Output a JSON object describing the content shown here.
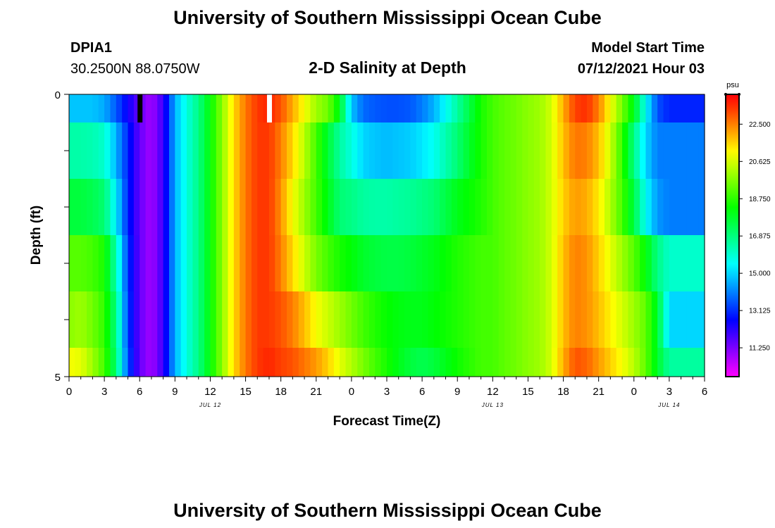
{
  "header": {
    "title": "University of Southern Mississippi Ocean Cube",
    "station_id": "DPIA1",
    "station_coords": "30.2500N  88.0750W",
    "subtitle": "2-D Salinity at Depth",
    "model_label": "Model Start Time",
    "model_time": "07/12/2021 Hour 03"
  },
  "footer": {
    "title": "University of Southern Mississippi Ocean Cube"
  },
  "chart_data": {
    "type": "heatmap",
    "title": "2-D Salinity at Depth",
    "xlabel": "Forecast Time(Z)",
    "ylabel": "Depth (ft)",
    "x_ticks": [
      "0",
      "3",
      "6",
      "9",
      "12",
      "15",
      "18",
      "21",
      "0",
      "3",
      "6",
      "9",
      "12",
      "15",
      "18",
      "21",
      "0",
      "3",
      "6"
    ],
    "date_labels": [
      {
        "text": "JUL 12",
        "at_hour": 12
      },
      {
        "text": "JUL 13",
        "at_hour": 36
      },
      {
        "text": "JUL 14",
        "at_hour": 51
      }
    ],
    "y_range": [
      0,
      5
    ],
    "y_tick_labels": [
      "0",
      "5"
    ],
    "colorbar": {
      "unit": "psu",
      "range": [
        9.8,
        24.0
      ],
      "tick_labels": [
        "22.500",
        "20.625",
        "18.750",
        "16.875",
        "15.000",
        "13.125",
        "11.250"
      ],
      "tick_values": [
        22.5,
        20.625,
        18.75,
        16.875,
        15.0,
        13.125,
        11.25
      ]
    },
    "markers": [
      {
        "hour": 6,
        "color": "#000000"
      },
      {
        "hour": 17,
        "color": "#ffffff"
      }
    ],
    "anchor_hours": [
      0,
      1,
      2,
      3,
      4,
      5,
      6,
      7,
      8,
      9,
      10,
      11,
      12,
      13,
      14,
      15,
      16,
      17,
      18,
      19,
      20,
      21,
      22,
      23,
      24,
      25,
      26,
      27,
      28,
      29,
      30,
      31,
      32,
      33,
      34,
      35,
      36,
      37,
      38,
      39,
      40,
      41,
      42,
      43,
      44,
      45,
      46,
      47,
      48,
      49,
      50,
      51,
      52,
      53,
      54
    ],
    "rows": [
      {
        "depth": "0.0-0.5",
        "values": [
          14.8,
          14.8,
          14.8,
          14.5,
          13.6,
          12.5,
          11.5,
          10.8,
          12.0,
          14.6,
          15.8,
          16.8,
          18.2,
          19.8,
          21.5,
          22.6,
          23.3,
          23.5,
          23.0,
          22.0,
          21.0,
          20.0,
          19.5,
          18.0,
          14.8,
          13.8,
          13.6,
          13.5,
          13.5,
          13.6,
          14.0,
          14.6,
          15.5,
          16.5,
          17.5,
          18.5,
          19.0,
          19.3,
          19.5,
          19.8,
          20.0,
          20.6,
          22.0,
          23.2,
          23.4,
          22.5,
          21.0,
          19.5,
          18.0,
          15.5,
          13.5,
          13.0,
          13.0,
          13.0,
          13.0
        ]
      },
      {
        "depth": "0.5-1.5",
        "values": [
          16.4,
          16.4,
          16.3,
          16.0,
          14.6,
          13.0,
          11.5,
          10.8,
          12.0,
          14.6,
          15.8,
          16.8,
          18.2,
          19.8,
          21.5,
          22.6,
          23.3,
          23.3,
          22.5,
          21.5,
          20.3,
          19.0,
          17.7,
          16.5,
          15.8,
          15.0,
          14.8,
          14.7,
          14.8,
          14.9,
          15.2,
          15.6,
          16.3,
          17.0,
          17.8,
          18.5,
          19.0,
          19.3,
          19.5,
          19.8,
          20.0,
          20.6,
          21.8,
          22.6,
          22.5,
          21.8,
          20.5,
          18.8,
          16.8,
          15.0,
          14.0,
          14.0,
          14.0,
          14.0,
          14.0
        ]
      },
      {
        "depth": "1.5-2.5",
        "values": [
          17.6,
          17.6,
          17.4,
          17.0,
          15.3,
          13.0,
          11.5,
          10.8,
          12.0,
          14.6,
          15.8,
          16.8,
          18.2,
          19.8,
          21.5,
          22.6,
          23.3,
          23.3,
          22.3,
          21.0,
          20.0,
          19.0,
          18.0,
          17.0,
          16.8,
          16.5,
          16.4,
          16.4,
          16.5,
          16.6,
          16.8,
          17.0,
          17.5,
          18.0,
          18.3,
          18.6,
          19.0,
          19.3,
          19.5,
          19.8,
          20.0,
          20.6,
          21.6,
          22.2,
          22.0,
          21.3,
          20.2,
          19.0,
          17.5,
          15.5,
          14.3,
          14.0,
          14.0,
          14.0,
          14.0
        ]
      },
      {
        "depth": "2.5-3.5",
        "values": [
          19.2,
          19.2,
          19.0,
          18.5,
          16.3,
          13.2,
          11.5,
          10.8,
          12.0,
          14.6,
          15.8,
          16.8,
          18.2,
          19.8,
          21.5,
          22.6,
          23.3,
          23.3,
          22.5,
          21.5,
          20.5,
          19.6,
          19.0,
          18.5,
          18.2,
          17.8,
          17.6,
          17.5,
          17.5,
          17.6,
          17.8,
          18.0,
          18.3,
          18.6,
          18.8,
          19.0,
          19.0,
          19.3,
          19.5,
          19.8,
          20.0,
          20.6,
          21.8,
          22.5,
          22.3,
          21.6,
          20.8,
          20.0,
          19.2,
          18.2,
          16.8,
          16.0,
          16.0,
          16.0,
          16.0
        ]
      },
      {
        "depth": "3.5-4.5",
        "values": [
          19.8,
          20.0,
          19.5,
          18.8,
          16.8,
          13.3,
          11.5,
          10.8,
          12.0,
          14.6,
          15.8,
          16.8,
          18.2,
          19.8,
          21.5,
          22.6,
          23.3,
          23.3,
          23.0,
          22.5,
          21.8,
          21.0,
          20.5,
          20.0,
          19.5,
          19.0,
          18.6,
          18.3,
          18.1,
          18.0,
          18.0,
          18.2,
          18.4,
          18.6,
          18.8,
          19.0,
          19.0,
          19.3,
          19.5,
          19.8,
          20.0,
          20.6,
          21.8,
          22.5,
          22.3,
          21.8,
          21.2,
          20.6,
          20.0,
          19.3,
          17.8,
          15.0,
          15.0,
          15.0,
          15.0
        ]
      },
      {
        "depth": "4.5-5.0",
        "values": [
          21.0,
          20.8,
          20.0,
          19.0,
          17.0,
          13.5,
          11.5,
          10.8,
          12.0,
          14.6,
          15.8,
          16.8,
          18.2,
          19.8,
          21.5,
          22.6,
          23.3,
          23.5,
          23.2,
          23.0,
          22.6,
          22.2,
          21.6,
          20.8,
          20.2,
          19.6,
          19.0,
          18.5,
          18.0,
          17.6,
          17.4,
          17.6,
          18.0,
          18.4,
          18.7,
          19.0,
          19.0,
          19.3,
          19.5,
          19.8,
          20.0,
          20.6,
          22.0,
          23.0,
          22.8,
          22.2,
          21.6,
          21.0,
          20.3,
          19.3,
          17.8,
          16.5,
          16.5,
          16.5,
          16.5
        ]
      }
    ]
  }
}
